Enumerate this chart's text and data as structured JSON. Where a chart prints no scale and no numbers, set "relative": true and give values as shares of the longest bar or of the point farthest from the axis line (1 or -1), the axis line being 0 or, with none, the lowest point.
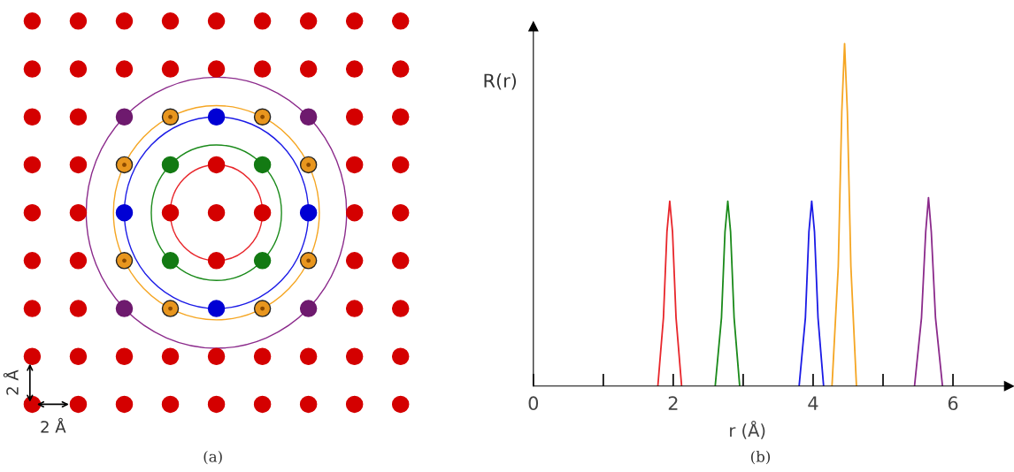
{
  "chart_data": [
    {
      "type": "other",
      "annotations": [
        "2 Å",
        "2 Å",
        "(a)"
      ]
    },
    {
      "type": "line",
      "relative": true,
      "xlabel": "r (Å)",
      "ylabel": "R(r)",
      "annotations": [
        "(b)"
      ],
      "xlim": [
        0,
        6.8
      ],
      "xticks": [
        0,
        {
          "value": 1,
          "label": null
        },
        2,
        {
          "value": 3,
          "label": null
        },
        4,
        {
          "value": 5,
          "label": null
        },
        6
      ],
      "tick_labels": "x",
      "grid": false,
      "marker": "none",
      "line_style": "solid",
      "series": [
        {
          "color": "#e8262b",
          "x": [
            1.78,
            1.86,
            1.91,
            1.95,
            1.99,
            2.04,
            2.12
          ],
          "values": [
            0,
            0.2,
            0.45,
            0.54,
            0.45,
            0.2,
            0
          ]
        },
        {
          "color": "#1a8a1a",
          "x": [
            2.6,
            2.69,
            2.74,
            2.78,
            2.82,
            2.87,
            2.95
          ],
          "values": [
            0,
            0.2,
            0.45,
            0.54,
            0.45,
            0.2,
            0
          ]
        },
        {
          "color": "#1a1ae6",
          "x": [
            3.8,
            3.89,
            3.94,
            3.98,
            4.02,
            4.07,
            4.15
          ],
          "values": [
            0,
            0.2,
            0.45,
            0.54,
            0.45,
            0.2,
            0
          ]
        },
        {
          "color": "#f5a623",
          "x": [
            4.27,
            4.36,
            4.41,
            4.45,
            4.49,
            4.54,
            4.62
          ],
          "values": [
            0,
            0.35,
            0.8,
            1,
            0.8,
            0.35,
            0
          ]
        },
        {
          "color": "#8b2a8b",
          "x": [
            5.45,
            5.55,
            5.61,
            5.65,
            5.69,
            5.75,
            5.85
          ],
          "values": [
            0,
            0.2,
            0.45,
            0.55,
            0.45,
            0.2,
            0
          ]
        }
      ]
    }
  ]
}
